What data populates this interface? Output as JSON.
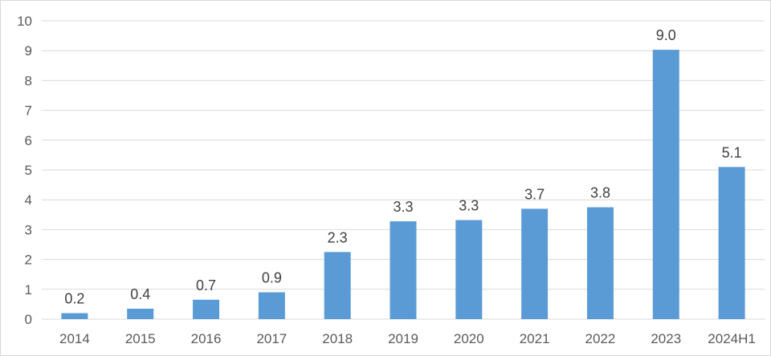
{
  "chart_data": {
    "type": "bar",
    "title": "",
    "xlabel": "",
    "ylabel": "",
    "categories": [
      "2014",
      "2015",
      "2016",
      "2017",
      "2018",
      "2019",
      "2020",
      "2021",
      "2022",
      "2023",
      "2024H1"
    ],
    "values": [
      0.2,
      0.35,
      0.65,
      0.9,
      2.25,
      3.28,
      3.32,
      3.7,
      3.75,
      9.03,
      5.1
    ],
    "data_labels": [
      "0.2",
      "0.4",
      "0.7",
      "0.9",
      "2.3",
      "3.3",
      "3.3",
      "3.7",
      "3.8",
      "9.0",
      "5.1"
    ],
    "ylim": [
      0,
      10
    ],
    "yticks": [
      "0",
      "1",
      "2",
      "3",
      "4",
      "5",
      "6",
      "7",
      "8",
      "9",
      "10"
    ],
    "grid": true,
    "legend": "none",
    "colors": {
      "bar": "#5b9bd5"
    }
  }
}
